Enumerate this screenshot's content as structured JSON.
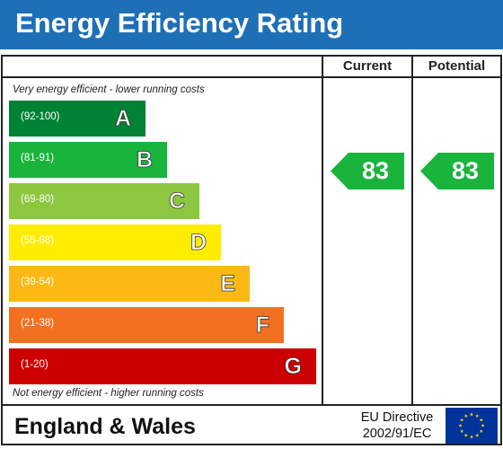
{
  "title": "Energy Efficiency Rating",
  "columns": {
    "current": "Current",
    "potential": "Potential"
  },
  "notes": {
    "top": "Very energy efficient - lower running costs",
    "bottom": "Not energy efficient - higher running costs"
  },
  "chart_data": {
    "type": "bar",
    "title": "Energy Efficiency Rating",
    "bands": [
      {
        "letter": "A",
        "range": "(92-100)",
        "color": "#008236"
      },
      {
        "letter": "B",
        "range": "(81-91)",
        "color": "#19b43c"
      },
      {
        "letter": "C",
        "range": "(69-80)",
        "color": "#8dc63f"
      },
      {
        "letter": "D",
        "range": "(55-68)",
        "color": "#ffed00"
      },
      {
        "letter": "E",
        "range": "(39-54)",
        "color": "#fcb814"
      },
      {
        "letter": "F",
        "range": "(21-38)",
        "color": "#f37021"
      },
      {
        "letter": "G",
        "range": "(1-20)",
        "color": "#cc0000"
      }
    ],
    "current": {
      "value": 83,
      "band": "B",
      "color": "#19b43c"
    },
    "potential": {
      "value": 83,
      "band": "B",
      "color": "#19b43c"
    }
  },
  "footer": {
    "region": "England & Wales",
    "directive_line1": "EU Directive",
    "directive_line2": "2002/91/EC",
    "flag_icon": "eu-flag-icon",
    "flag_color": "#003399",
    "star_color": "#ffcc00"
  }
}
